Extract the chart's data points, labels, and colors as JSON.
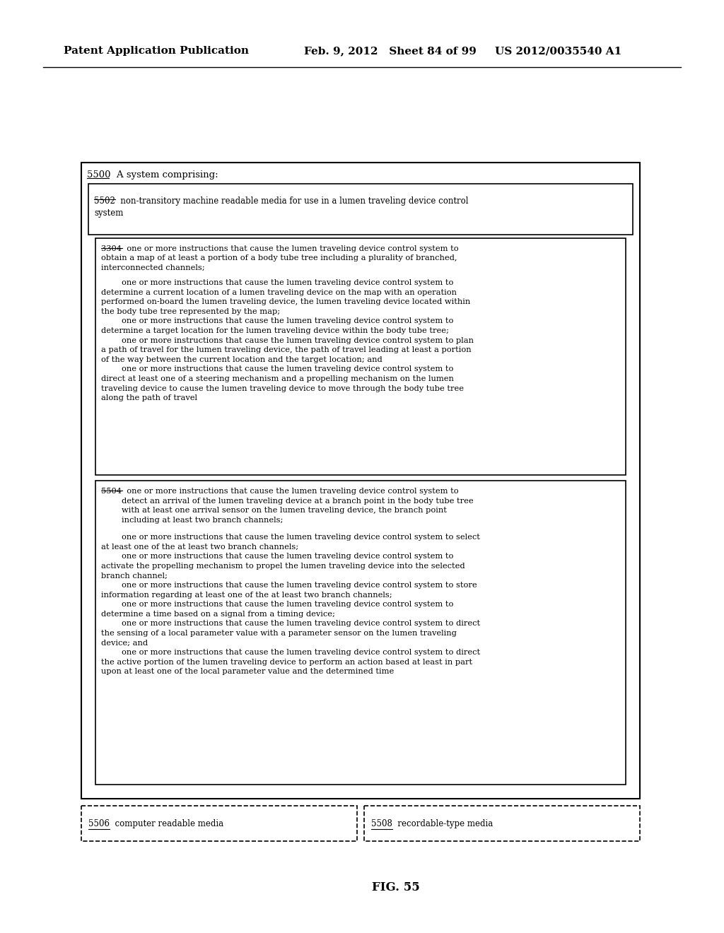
{
  "bg_color": "#ffffff",
  "header_left": "Patent Application Publication",
  "header_mid": "Feb. 9, 2012   Sheet 84 of 99",
  "header_right": "US 2012/0035540 A1",
  "fig_label": "FIG. 55",
  "outer_box_label": "5500  A system comprising:",
  "box5502_label": "5502  non-transitory machine readable media for use in a lumen traveling device control\nsystem",
  "box3304_label": "3304  one or more instructions that cause the lumen traveling device control system to\nobtain a map of at least a portion of a body tube tree including a plurality of branched,\ninterconnected channels;",
  "box3304_content": "        one or more instructions that cause the lumen traveling device control system to\ndetermine a current location of a lumen traveling device on the map with an operation\nperformed on-board the lumen traveling device, the lumen traveling device located within\nthe body tube tree represented by the map;\n        one or more instructions that cause the lumen traveling device control system to\ndetermine a target location for the lumen traveling device within the body tube tree;\n        one or more instructions that cause the lumen traveling device control system to plan\na path of travel for the lumen traveling device, the path of travel leading at least a portion\nof the way between the current location and the target location; and\n        one or more instructions that cause the lumen traveling device control system to\ndirect at least one of a steering mechanism and a propelling mechanism on the lumen\ntraveling device to cause the lumen traveling device to move through the body tube tree\nalong the path of travel",
  "box5504_label": "5504  one or more instructions that cause the lumen traveling device control system to\n        detect an arrival of the lumen traveling device at a branch point in the body tube tree\n        with at least one arrival sensor on the lumen traveling device, the branch point\n        including at least two branch channels;",
  "box5504_content": "        one or more instructions that cause the lumen traveling device control system to select\nat least one of the at least two branch channels;\n        one or more instructions that cause the lumen traveling device control system to\nactivate the propelling mechanism to propel the lumen traveling device into the selected\nbranch channel;\n        one or more instructions that cause the lumen traveling device control system to store\ninformation regarding at least one of the at least two branch channels;\n        one or more instructions that cause the lumen traveling device control system to\ndetermine a time based on a signal from a timing device;\n        one or more instructions that cause the lumen traveling device control system to direct\nthe sensing of a local parameter value with a parameter sensor on the lumen traveling\ndevice; and\n        one or more instructions that cause the lumen traveling device control system to direct\nthe active portion of the lumen traveling device to perform an action based at least in part\nupon at least one of the local parameter value and the determined time",
  "box5506_label": "5506  computer readable media",
  "box5508_label": "5508  recordable-type media"
}
